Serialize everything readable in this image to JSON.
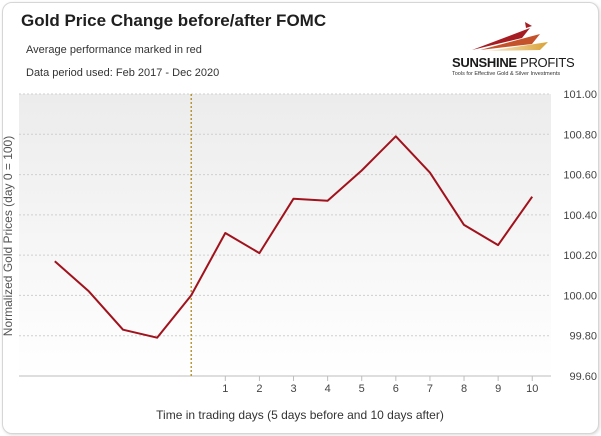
{
  "header": {
    "title": "Gold Price Change before/after FOMC",
    "subtitle1": "Average performance marked in red",
    "subtitle2": "Data period used: Feb 2017 - Dec 2020"
  },
  "logo": {
    "name_bold": "SUNSHINE",
    "name_regular": " PROFITS",
    "tagline": "Tools for Effective Gold & Silver Investments",
    "icon": "sunrise-logo-icon"
  },
  "colors": {
    "series": "#a0121c",
    "event_line": "#b08a1a",
    "logo_red": "#a51c22",
    "logo_gold": "#d9a233"
  },
  "chart_data": {
    "type": "line",
    "title": "Gold Price Change before/after FOMC",
    "xlabel": "Time in trading days  (5 days before and 10 days after)",
    "ylabel": "Normalized Gold Prices (day 0 = 100)",
    "x": [
      -4,
      -3,
      -2,
      -1,
      0,
      1,
      2,
      3,
      4,
      5,
      6,
      7,
      8,
      9,
      10
    ],
    "x_tick_labels": [
      "1",
      "2",
      "3",
      "4",
      "5",
      "6",
      "7",
      "8",
      "9",
      "10"
    ],
    "x_tick_values": [
      1,
      2,
      3,
      4,
      5,
      6,
      7,
      8,
      9,
      10
    ],
    "ylim": [
      99.6,
      101.0
    ],
    "y_tick_values": [
      99.6,
      99.8,
      100.0,
      100.2,
      100.4,
      100.6,
      100.8,
      101.0
    ],
    "y_tick_labels": [
      "99.60",
      "99.80",
      "100.00",
      "100.20",
      "100.40",
      "100.60",
      "100.80",
      "101.00"
    ],
    "y_axis_side": "right",
    "grid": "horizontal dashed",
    "event_marker": {
      "x": 0,
      "style": "dotted vertical"
    },
    "series": [
      {
        "values": [
          100.17,
          100.02,
          99.83,
          99.79,
          100.0,
          100.31,
          100.21,
          100.48,
          100.47,
          100.62,
          100.79,
          100.61,
          100.35,
          100.25,
          100.49
        ]
      }
    ]
  }
}
